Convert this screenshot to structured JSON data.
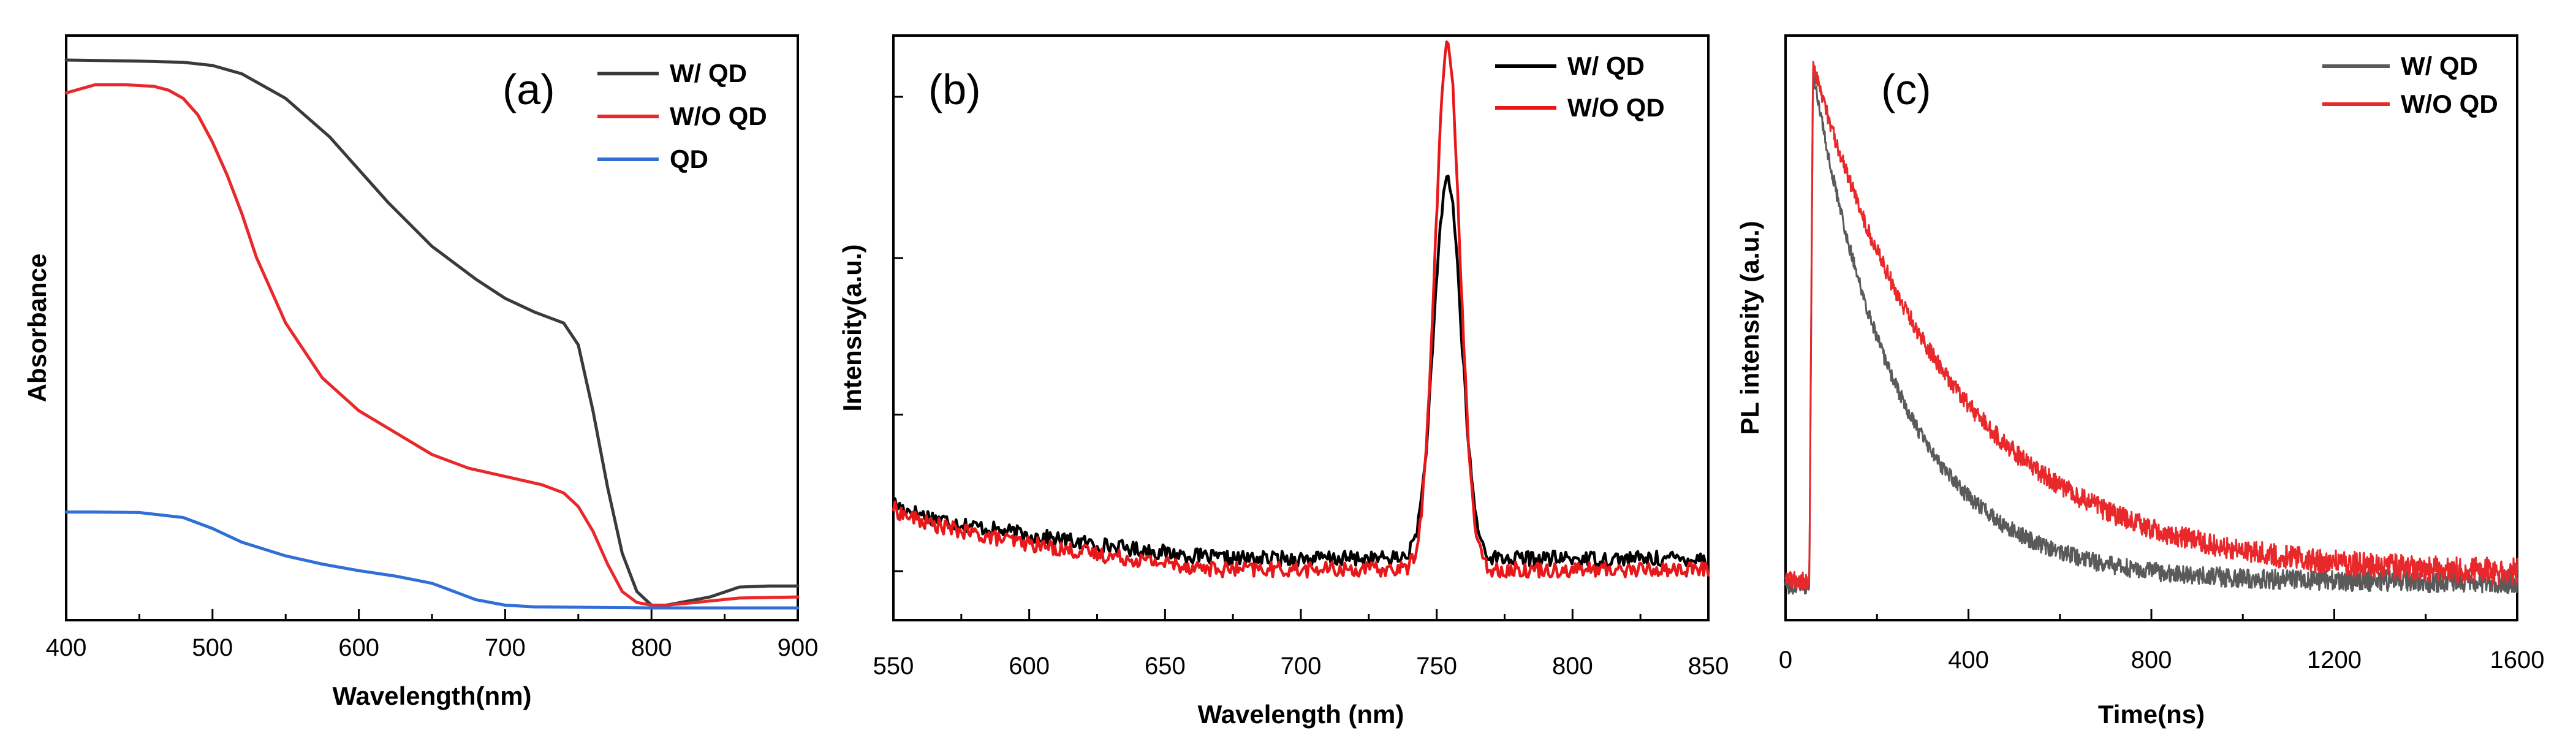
{
  "chart_data": [
    {
      "id": "a",
      "type": "line",
      "panel_label": "(a)",
      "title": "",
      "xlabel": "Wavelength(nm)",
      "ylabel": "Absorbance",
      "xlim": [
        400,
        900
      ],
      "ylim": [
        0,
        1
      ],
      "xticks": [
        400,
        500,
        600,
        700,
        800,
        900
      ],
      "yticks_labeled": false,
      "legend_position": "top-right",
      "series": [
        {
          "name": "W/ QD",
          "color": "#3a3a3a",
          "x": [
            400,
            450,
            480,
            500,
            520,
            550,
            580,
            600,
            620,
            650,
            680,
            700,
            720,
            740,
            750,
            760,
            770,
            780,
            790,
            800,
            810,
            820,
            840,
            860,
            880,
            900
          ],
          "y": [
            1.0,
            0.998,
            0.996,
            0.99,
            0.975,
            0.93,
            0.86,
            0.8,
            0.74,
            0.66,
            0.6,
            0.565,
            0.54,
            0.52,
            0.48,
            0.36,
            0.22,
            0.1,
            0.03,
            0.005,
            0.005,
            0.01,
            0.02,
            0.038,
            0.04,
            0.04
          ]
        },
        {
          "name": "W/O QD",
          "color": "#e8282b",
          "x": [
            400,
            420,
            440,
            460,
            470,
            480,
            490,
            500,
            510,
            520,
            530,
            550,
            575,
            600,
            625,
            650,
            675,
            700,
            725,
            740,
            750,
            760,
            770,
            780,
            790,
            800,
            810,
            830,
            860,
            900
          ],
          "y": [
            0.94,
            0.955,
            0.955,
            0.952,
            0.945,
            0.93,
            0.9,
            0.85,
            0.79,
            0.72,
            0.64,
            0.52,
            0.42,
            0.36,
            0.32,
            0.28,
            0.255,
            0.24,
            0.225,
            0.21,
            0.185,
            0.14,
            0.08,
            0.03,
            0.01,
            0.005,
            0.005,
            0.01,
            0.018,
            0.02
          ]
        },
        {
          "name": "QD",
          "color": "#2f6fd6",
          "x": [
            400,
            420,
            450,
            480,
            500,
            520,
            550,
            575,
            600,
            625,
            650,
            660,
            680,
            700,
            720,
            800,
            900
          ],
          "y": [
            0.175,
            0.175,
            0.174,
            0.165,
            0.145,
            0.12,
            0.095,
            0.08,
            0.068,
            0.058,
            0.045,
            0.035,
            0.015,
            0.005,
            0.002,
            0.0,
            0.0
          ]
        }
      ]
    },
    {
      "id": "b",
      "type": "line",
      "panel_label": "(b)",
      "title": "",
      "xlabel": "Wavelength (nm)",
      "ylabel": "Intensity(a.u.)",
      "xlim": [
        550,
        850
      ],
      "ylim": [
        0,
        1
      ],
      "xticks": [
        550,
        600,
        650,
        700,
        750,
        800,
        850
      ],
      "yticks_labeled": false,
      "legend_position": "top-right",
      "peak_nm": 754,
      "series": [
        {
          "name": "W/ QD",
          "color": "#000000",
          "baseline_start": 0.195,
          "baseline_end": 0.09,
          "peak": 0.695,
          "peak_x": 754,
          "width": 5.0,
          "noise": 0.014
        },
        {
          "name": "W/O QD",
          "color": "#e8181a",
          "baseline_start": 0.185,
          "baseline_end": 0.07,
          "peak": 0.955,
          "peak_x": 754,
          "width": 4.6,
          "noise": 0.014
        }
      ]
    },
    {
      "id": "c",
      "type": "line",
      "panel_label": "(c)",
      "title": "",
      "xlabel": "Time(ns)",
      "ylabel": "PL intensity (a.u.)",
      "xlim": [
        0,
        1600
      ],
      "ylim": [
        0,
        1
      ],
      "xticks": [
        0,
        400,
        800,
        1200,
        1600
      ],
      "yticks_labeled": false,
      "legend_position": "top-right",
      "rise_ns": 60,
      "series": [
        {
          "name": "W/ QD",
          "color": "#5a5a5a",
          "offset": 0.048,
          "amplitude": 0.93,
          "tau_ns": 190,
          "pre_level": 0.04,
          "noise": 0.012
        },
        {
          "name": "W/O QD",
          "color": "#e8282b",
          "offset": 0.06,
          "amplitude": 0.93,
          "tau_ns": 310,
          "pre_level": 0.05,
          "noise": 0.014
        }
      ]
    }
  ]
}
